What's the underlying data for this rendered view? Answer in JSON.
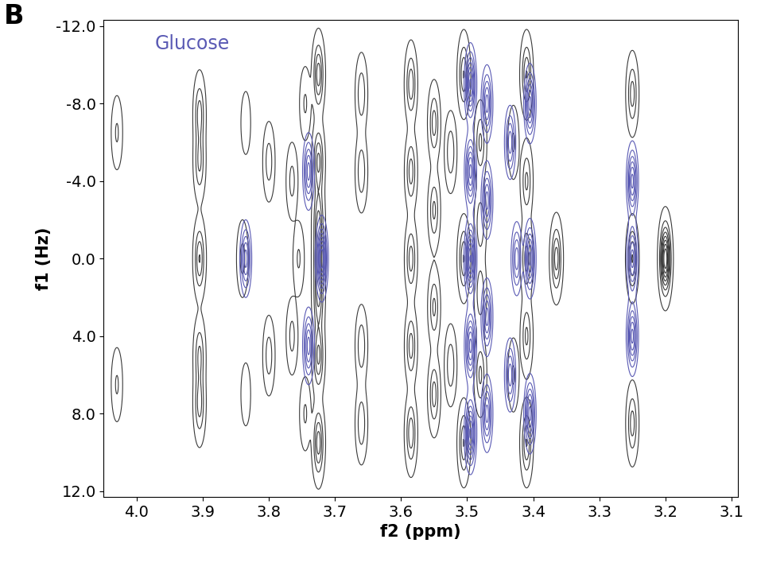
{
  "chart_data": {
    "type": "contour",
    "panel_label": "B",
    "xlabel": "f2 (ppm)",
    "ylabel": "f1 (Hz)",
    "xlim": [
      4.05,
      3.09
    ],
    "ylim": [
      12.3,
      -12.3
    ],
    "xticks": [
      4.0,
      3.9,
      3.8,
      3.7,
      3.6,
      3.5,
      3.4,
      3.3,
      3.2,
      3.1
    ],
    "yticks": [
      -12.0,
      -8.0,
      -4.0,
      0.0,
      4.0,
      8.0,
      12.0
    ],
    "series": [
      {
        "color": "#3a3a3a",
        "peaks": [
          [
            4.03,
            -6.5,
            0.5
          ],
          [
            4.03,
            6.5,
            0.5
          ],
          [
            3.905,
            -7.5,
            1.0
          ],
          [
            3.905,
            -5.0,
            0.9
          ],
          [
            3.905,
            0.0,
            1.2
          ],
          [
            3.905,
            5.0,
            0.9
          ],
          [
            3.905,
            7.5,
            1.0
          ],
          [
            3.835,
            -7.0,
            0.3
          ],
          [
            3.835,
            7.0,
            0.3
          ],
          [
            3.84,
            0.0,
            0.6
          ],
          [
            3.8,
            -5.0,
            0.7
          ],
          [
            3.8,
            5.0,
            0.7
          ],
          [
            3.765,
            -4.0,
            0.6
          ],
          [
            3.765,
            4.0,
            0.6
          ],
          [
            3.755,
            0.0,
            0.5
          ],
          [
            3.745,
            -8.0,
            0.5
          ],
          [
            3.745,
            8.0,
            0.5
          ],
          [
            3.725,
            -9.5,
            1.4
          ],
          [
            3.725,
            -5.0,
            1.3
          ],
          [
            3.725,
            -2.0,
            1.2
          ],
          [
            3.725,
            0.0,
            1.2
          ],
          [
            3.725,
            2.0,
            1.2
          ],
          [
            3.725,
            5.0,
            1.3
          ],
          [
            3.725,
            9.5,
            1.4
          ],
          [
            3.66,
            -8.5,
            0.8
          ],
          [
            3.66,
            -4.5,
            0.8
          ],
          [
            3.66,
            4.5,
            0.8
          ],
          [
            3.66,
            8.5,
            0.8
          ],
          [
            3.585,
            -9.0,
            1.1
          ],
          [
            3.585,
            -4.5,
            1.0
          ],
          [
            3.585,
            0.0,
            1.0
          ],
          [
            3.585,
            4.5,
            1.0
          ],
          [
            3.585,
            9.0,
            1.1
          ],
          [
            3.55,
            -7.0,
            1.0
          ],
          [
            3.55,
            -2.5,
            0.9
          ],
          [
            3.55,
            2.5,
            0.9
          ],
          [
            3.55,
            7.0,
            1.0
          ],
          [
            3.525,
            -5.5,
            0.8
          ],
          [
            3.525,
            5.5,
            0.8
          ],
          [
            3.505,
            -9.5,
            1.2
          ],
          [
            3.505,
            0.0,
            1.2
          ],
          [
            3.505,
            9.5,
            1.2
          ],
          [
            3.48,
            -6.0,
            0.9
          ],
          [
            3.48,
            -1.8,
            0.8
          ],
          [
            3.48,
            1.8,
            0.8
          ],
          [
            3.48,
            6.0,
            0.9
          ],
          [
            3.43,
            -6.0,
            0.5
          ],
          [
            3.43,
            6.0,
            0.5
          ],
          [
            3.41,
            -9.5,
            1.2
          ],
          [
            3.41,
            -4.0,
            0.9
          ],
          [
            3.41,
            0.0,
            1.0
          ],
          [
            3.41,
            4.0,
            0.9
          ],
          [
            3.41,
            9.5,
            1.2
          ],
          [
            3.365,
            0.0,
            1.4
          ],
          [
            3.25,
            -8.5,
            1.0
          ],
          [
            3.25,
            0.0,
            1.2
          ],
          [
            3.25,
            8.5,
            1.0
          ],
          [
            3.2,
            0.0,
            3.0
          ]
        ]
      },
      {
        "name": "Glucose",
        "color": "#5a5ab4",
        "peaks": [
          [
            3.835,
            0.0,
            0.6
          ],
          [
            3.74,
            -4.5,
            0.6
          ],
          [
            3.74,
            4.5,
            0.6
          ],
          [
            3.72,
            0.0,
            1.0
          ],
          [
            3.495,
            -9.0,
            0.8
          ],
          [
            3.495,
            -4.5,
            0.7
          ],
          [
            3.495,
            0.0,
            0.9
          ],
          [
            3.495,
            4.5,
            0.7
          ],
          [
            3.495,
            9.0,
            0.8
          ],
          [
            3.47,
            -8.0,
            0.6
          ],
          [
            3.47,
            -3.0,
            0.6
          ],
          [
            3.47,
            3.0,
            0.6
          ],
          [
            3.47,
            8.0,
            0.6
          ],
          [
            3.435,
            -6.0,
            0.5
          ],
          [
            3.435,
            6.0,
            0.5
          ],
          [
            3.425,
            0.0,
            0.5
          ],
          [
            3.405,
            -8.0,
            0.7
          ],
          [
            3.405,
            0.0,
            0.7
          ],
          [
            3.405,
            8.0,
            0.7
          ],
          [
            3.25,
            -4.0,
            0.7
          ],
          [
            3.25,
            0.0,
            0.6
          ],
          [
            3.25,
            4.0,
            0.7
          ]
        ]
      }
    ]
  }
}
